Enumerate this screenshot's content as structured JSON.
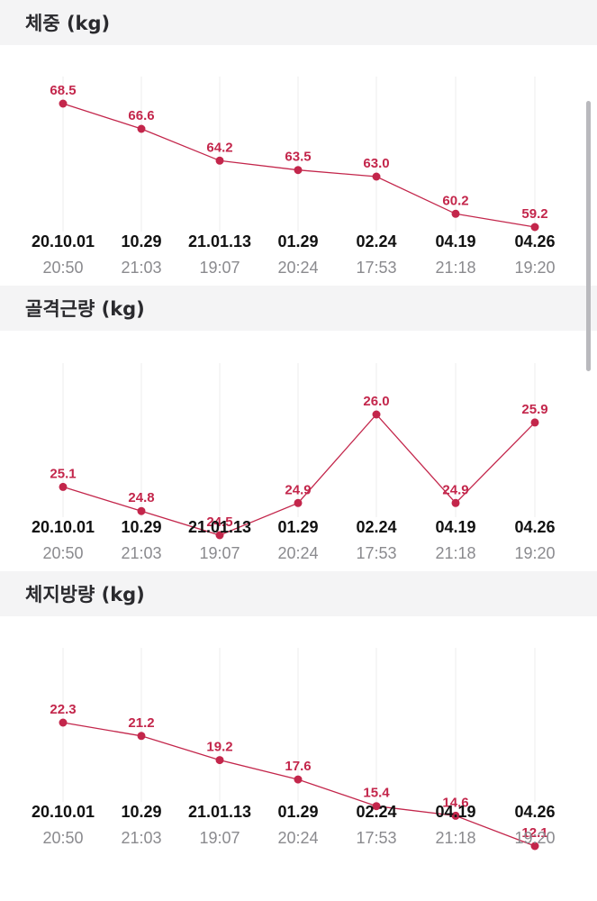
{
  "colors": {
    "accent": "#c3264b",
    "header_bg": "#f4f4f5",
    "date_text": "#111111",
    "time_text": "#8a8a8e",
    "grid": "#ececec"
  },
  "x_labels": {
    "dates": [
      "20.10.01",
      "10.29",
      "21.01.13",
      "01.29",
      "02.24",
      "04.19",
      "04.26"
    ],
    "times": [
      "20:50",
      "21:03",
      "19:07",
      "20:24",
      "17:53",
      "21:18",
      "19:20"
    ]
  },
  "sections": [
    {
      "title": "체중 (kg)"
    },
    {
      "title": "골격근량 (kg)"
    },
    {
      "title": "체지방량 (kg)"
    }
  ],
  "chart_data": [
    {
      "type": "line",
      "title": "체중 (kg)",
      "categories": [
        "20.10.01 20:50",
        "10.29 21:03",
        "21.01.13 19:07",
        "01.29 20:24",
        "02.24 17:53",
        "04.19 21:18",
        "04.26 19:20"
      ],
      "series": [
        {
          "values": [
            68.5,
            66.6,
            64.2,
            63.5,
            63.0,
            60.2,
            59.2
          ],
          "labels": [
            "68.5",
            "66.6",
            "64.2",
            "63.5",
            "63.0",
            "60.2",
            "59.2"
          ]
        }
      ],
      "grid": "vertical",
      "data_labels": true
    },
    {
      "type": "line",
      "title": "골격근량 (kg)",
      "categories": [
        "20.10.01 20:50",
        "10.29 21:03",
        "21.01.13 19:07",
        "01.29 20:24",
        "02.24 17:53",
        "04.19 21:18",
        "04.26 19:20"
      ],
      "series": [
        {
          "values": [
            25.1,
            24.8,
            24.5,
            24.9,
            26.0,
            24.9,
            25.9
          ],
          "labels": [
            "25.1",
            "24.8",
            "24.5",
            "24.9",
            "26.0",
            "24.9",
            "25.9"
          ]
        }
      ],
      "grid": "vertical",
      "data_labels": true
    },
    {
      "type": "line",
      "title": "체지방량 (kg)",
      "categories": [
        "20.10.01 20:50",
        "10.29 21:03",
        "21.01.13 19:07",
        "01.29 20:24",
        "02.24 17:53",
        "04.19 21:18",
        "04.26 19:20"
      ],
      "series": [
        {
          "values": [
            22.3,
            21.2,
            19.2,
            17.6,
            15.4,
            14.6,
            12.1
          ],
          "labels": [
            "22.3",
            "21.2",
            "19.2",
            "17.6",
            "15.4",
            "14.6",
            "12.1"
          ]
        }
      ],
      "grid": "vertical",
      "data_labels": true
    }
  ]
}
